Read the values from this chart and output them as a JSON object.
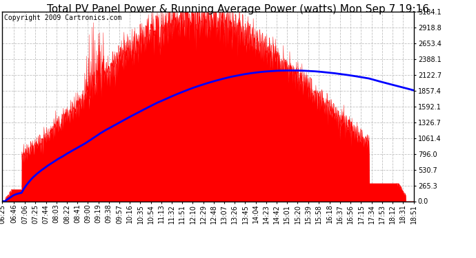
{
  "title": "Total PV Panel Power & Running Average Power (watts) Mon Sep 7 19:16",
  "copyright": "Copyright 2009 Cartronics.com",
  "yticks": [
    0.0,
    265.3,
    530.7,
    796.0,
    1061.4,
    1326.7,
    1592.1,
    1857.4,
    2122.7,
    2388.1,
    2653.4,
    2918.8,
    3184.1
  ],
  "ymax": 3184.1,
  "ymin": 0.0,
  "pv_color": "#FF0000",
  "avg_color": "#0000FF",
  "bg_color": "#FFFFFF",
  "grid_color": "#C0C0C0",
  "title_fontsize": 11,
  "copyright_fontsize": 7,
  "tick_fontsize": 7,
  "x_tick_labels": [
    "06:25",
    "06:46",
    "07:06",
    "07:25",
    "07:44",
    "08:03",
    "08:22",
    "08:41",
    "09:00",
    "09:19",
    "09:38",
    "09:57",
    "10:16",
    "10:35",
    "10:54",
    "11:13",
    "11:32",
    "11:51",
    "12:10",
    "12:29",
    "12:48",
    "13:07",
    "13:26",
    "13:45",
    "14:04",
    "14:23",
    "14:42",
    "15:01",
    "15:20",
    "15:39",
    "15:58",
    "16:18",
    "16:37",
    "16:56",
    "17:15",
    "17:34",
    "17:53",
    "18:12",
    "18:31",
    "18:51"
  ]
}
